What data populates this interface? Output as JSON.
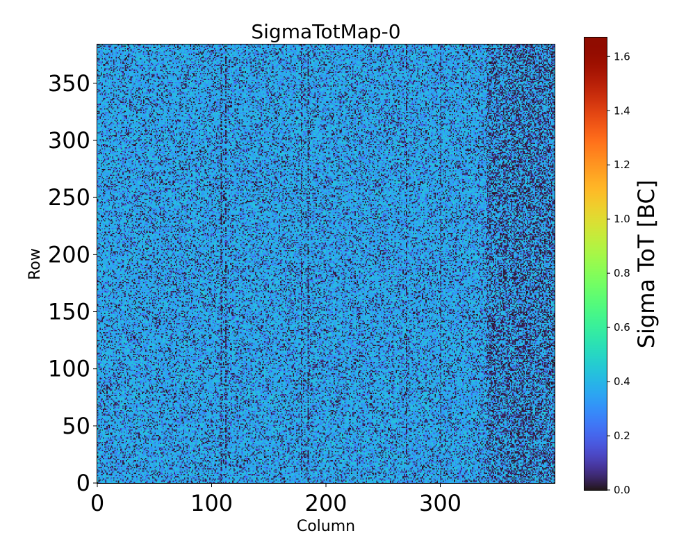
{
  "chart_data": {
    "type": "heatmap",
    "title": "SigmaTotMap-0",
    "xlabel": "Column",
    "ylabel": "Row",
    "xlim": [
      0,
      400
    ],
    "ylim": [
      0,
      384
    ],
    "n_columns": 400,
    "n_rows": 384,
    "x_ticks": [
      0,
      100,
      200,
      300
    ],
    "x_tick_labels": [
      "0",
      "100",
      "200",
      "300"
    ],
    "y_ticks": [
      0,
      50,
      100,
      150,
      200,
      250,
      300,
      350
    ],
    "y_tick_labels": [
      "0",
      "50",
      "100",
      "150",
      "200",
      "250",
      "300",
      "350"
    ],
    "colorbar": {
      "label": "Sigma ToT [BC]",
      "colormap": "turbo",
      "vmin": 0.0,
      "vmax": 1.67,
      "ticks": [
        0.0,
        0.2,
        0.4,
        0.6,
        0.8,
        1.0,
        1.2,
        1.4,
        1.6
      ],
      "tick_labels": [
        "0.0",
        "0.2",
        "0.4",
        "0.6",
        "0.8",
        "1.0",
        "1.2",
        "1.4",
        "1.6"
      ]
    },
    "value_distribution": {
      "typical_value": 0.38,
      "spread": 0.08,
      "dark_fraction": 0.18,
      "dark_value": 0.03,
      "dark_fraction_right_region": 0.4,
      "right_region_start_column": 340,
      "dark_column_stripes": [
        108,
        112,
        178,
        184,
        270,
        300,
        372,
        378
      ]
    }
  }
}
